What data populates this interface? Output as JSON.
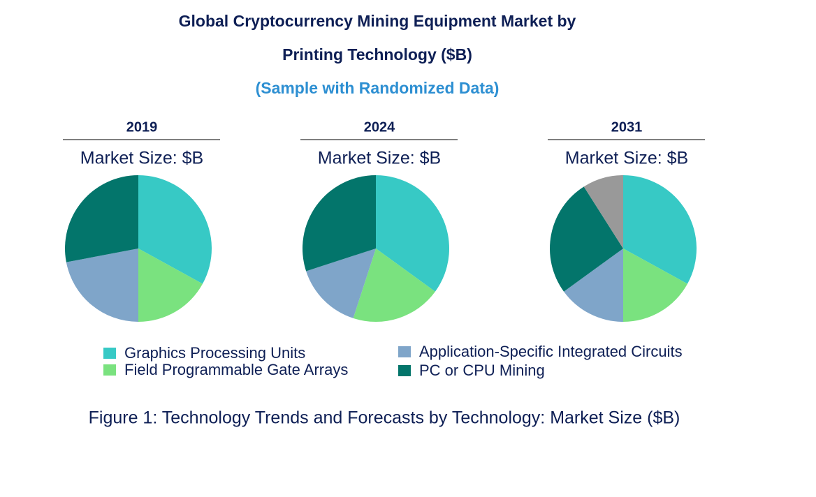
{
  "chart_data": {
    "type": "pie",
    "title": [
      "Global Cryptocurrency Mining Equipment Market by",
      "Printing Technology ($B)"
    ],
    "subtitle": "(Sample with Randomized Data)",
    "categories": [
      "Graphics Processing Units",
      "Field Programmable Gate Arrays",
      "Application-Specific Integrated Circuits",
      "PC or CPU Mining",
      null
    ],
    "colors": [
      "#37c9c5",
      "#7ae27f",
      "#7fa5c9",
      "#03756b",
      "#999999"
    ],
    "pies": [
      {
        "title": "2019",
        "subtitle": "Market Size: $B",
        "values": [
          33,
          17,
          22,
          28
        ]
      },
      {
        "title": "2024",
        "subtitle": "Market Size: $B",
        "values": [
          35,
          20,
          15,
          30
        ]
      },
      {
        "title": "2031",
        "subtitle": "Market Size: $B",
        "values": [
          33,
          17,
          15,
          26,
          9
        ]
      }
    ],
    "caption": "Figure 1: Technology Trends and Forecasts by Technology: Market Size ($B)"
  }
}
